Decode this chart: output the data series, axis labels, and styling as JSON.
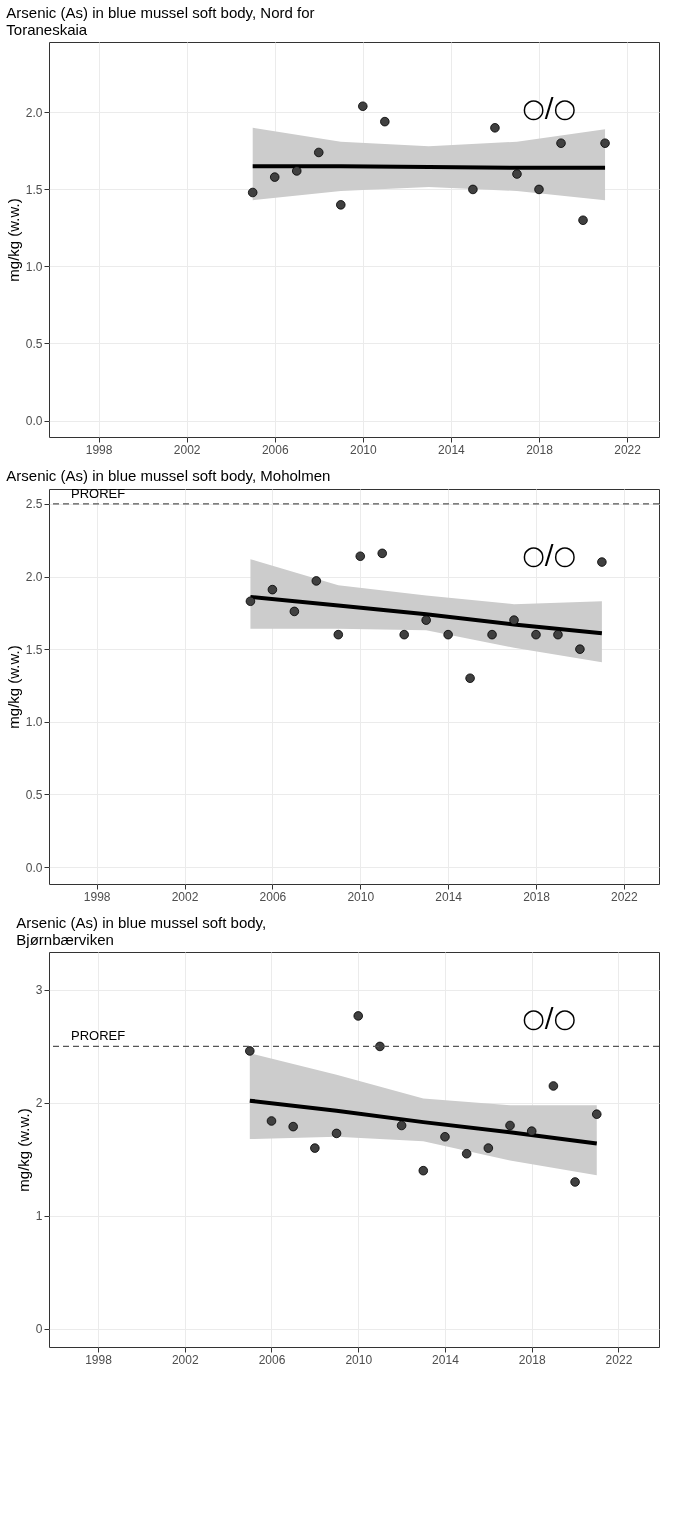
{
  "chart_data": [
    {
      "type": "scatter",
      "title": "Arsenic (As) in blue mussel soft body, Nord for Toraneskaia",
      "ylabel": "mg/kg (w.w.)",
      "xlim": [
        1995.75,
        2023.45
      ],
      "xticks": [
        1998,
        2002,
        2006,
        2010,
        2014,
        2018,
        2022
      ],
      "ylim": [
        -0.107,
        2.457
      ],
      "yticks": [
        {
          "value": 0,
          "label": "0.0"
        },
        0.5,
        {
          "value": 1,
          "label": "1.0"
        },
        1.5,
        {
          "value": 2,
          "label": "2.0"
        }
      ],
      "grid": true,
      "annotations": [
        "○/○"
      ],
      "series": [
        {
          "marker": "circle",
          "color": "#404040",
          "x": [
            2005,
            2006,
            2007,
            2008,
            2009,
            2010,
            2011,
            2015,
            2016,
            2017,
            2018,
            2019,
            2020,
            2021
          ],
          "values": [
            1.48,
            1.58,
            1.62,
            1.74,
            1.4,
            2.04,
            1.94,
            1.5,
            1.9,
            1.6,
            1.5,
            1.8,
            1.3,
            1.8
          ]
        },
        {
          "type": "line",
          "marker": "none",
          "color": "#000000",
          "x": [
            2005,
            2009,
            2013,
            2017,
            2021
          ],
          "values": [
            1.65,
            1.65,
            1.645,
            1.64,
            1.64
          ],
          "lower": [
            1.43,
            1.49,
            1.515,
            1.49,
            1.43
          ],
          "upper": [
            1.9,
            1.81,
            1.78,
            1.81,
            1.89
          ]
        }
      ]
    },
    {
      "type": "scatter",
      "title": "Arsenic (As) in blue mussel soft body, Moholmen",
      "ylabel": "mg/kg (w.w.)",
      "xlim": [
        1995.83,
        2023.6
      ],
      "xticks": [
        1998,
        2002,
        2006,
        2010,
        2014,
        2018,
        2022
      ],
      "ylim": [
        -0.117,
        2.603
      ],
      "yticks": [
        {
          "value": 0,
          "label": "0.0"
        },
        0.5,
        {
          "value": 1,
          "label": "1.0"
        },
        1.5,
        {
          "value": 2,
          "label": "2.0"
        },
        2.5
      ],
      "grid": true,
      "annotations": [
        "○/○"
      ],
      "ref_lines": [
        {
          "axis": "y",
          "value": 2.5,
          "label": "PROREF",
          "color": "#555555",
          "line_style": "dashed"
        }
      ],
      "series": [
        {
          "marker": "circle",
          "color": "#404040",
          "x": [
            2005,
            2006,
            2007,
            2008,
            2009,
            2010,
            2011,
            2012,
            2013,
            2014,
            2015,
            2016,
            2017,
            2018,
            2019,
            2020,
            2021
          ],
          "values": [
            1.83,
            1.91,
            1.76,
            1.97,
            1.6,
            2.14,
            2.16,
            1.6,
            1.7,
            1.6,
            1.3,
            1.6,
            1.7,
            1.6,
            1.6,
            1.5,
            2.1
          ]
        },
        {
          "type": "line",
          "marker": "none",
          "color": "#000000",
          "x": [
            2005,
            2009,
            2013,
            2017,
            2021
          ],
          "values": [
            1.86,
            1.8,
            1.74,
            1.67,
            1.61
          ],
          "lower": [
            1.64,
            1.64,
            1.63,
            1.51,
            1.41
          ],
          "upper": [
            2.12,
            1.94,
            1.87,
            1.81,
            1.83
          ]
        }
      ]
    },
    {
      "type": "scatter",
      "title": "Arsenic (As) in blue mussel soft body, Bjørnbærviken",
      "ylabel": "mg/kg (w.w.)",
      "xlim": [
        1995.74,
        2023.87
      ],
      "xticks": [
        1998,
        2002,
        2006,
        2010,
        2014,
        2018,
        2022
      ],
      "ylim": [
        -0.161,
        3.336
      ],
      "yticks": [
        0,
        1,
        2,
        3
      ],
      "grid": true,
      "annotations": [
        "○/○"
      ],
      "ref_lines": [
        {
          "axis": "y",
          "value": 2.5,
          "label": "PROREF",
          "color": "#555555",
          "line_style": "dashed"
        }
      ],
      "series": [
        {
          "marker": "circle",
          "color": "#404040",
          "x": [
            2005,
            2006,
            2007,
            2008,
            2009,
            2010,
            2011,
            2012,
            2013,
            2014,
            2015,
            2016,
            2017,
            2018,
            2019,
            2020,
            2021
          ],
          "values": [
            2.46,
            1.84,
            1.79,
            1.6,
            1.73,
            2.77,
            2.5,
            1.8,
            1.4,
            1.7,
            1.55,
            1.6,
            1.8,
            1.75,
            2.15,
            1.3,
            1.9
          ]
        },
        {
          "type": "line",
          "marker": "none",
          "color": "#000000",
          "x": [
            2005,
            2009,
            2013,
            2017,
            2021
          ],
          "values": [
            2.02,
            1.93,
            1.83,
            1.74,
            1.64
          ],
          "lower": [
            1.68,
            1.7,
            1.66,
            1.49,
            1.36
          ],
          "upper": [
            2.44,
            2.25,
            2.04,
            1.98,
            1.98
          ]
        }
      ]
    }
  ]
}
